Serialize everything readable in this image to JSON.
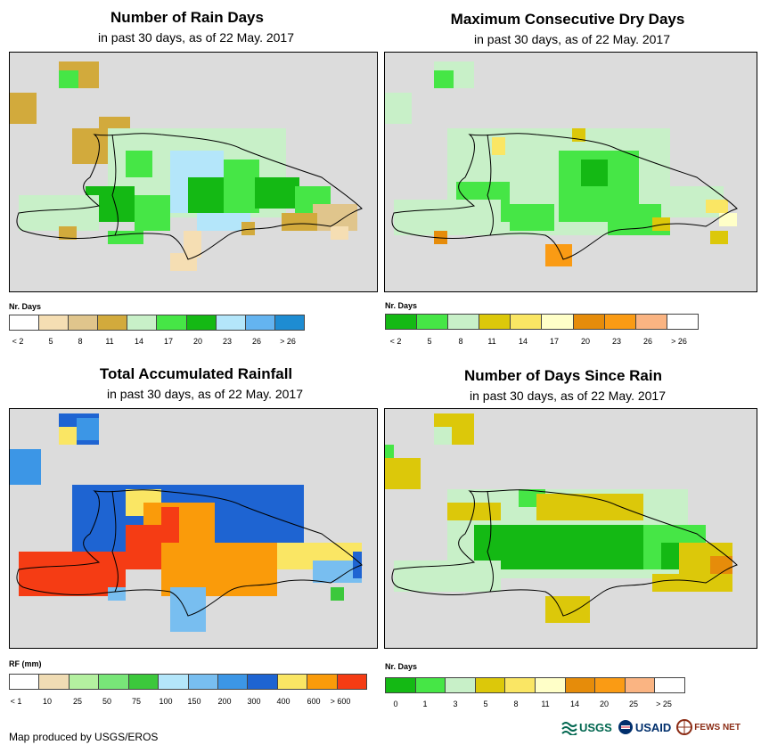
{
  "panels": [
    {
      "title": "Number of Rain Days",
      "subtitle": "in past 30 days, as of 22 May. 2017",
      "legend_title": "Nr. Days",
      "legend_labels": [
        "< 2",
        "5",
        "8",
        "11",
        "14",
        "17",
        "20",
        "23",
        "26",
        "> 26"
      ],
      "legend_colors": [
        "#ffffff",
        "#f5deb3",
        "#e0c58c",
        "#d2aa3c",
        "#c8f0c8",
        "#46e646",
        "#14b914",
        "#b4e6fa",
        "#64b4f0",
        "#1e8cd2"
      ]
    },
    {
      "title": "Maximum Consecutive Dry Days",
      "subtitle": "in past 30 days, as of 22 May. 2017",
      "legend_title": "Nr. Days",
      "legend_labels": [
        "< 2",
        "5",
        "8",
        "11",
        "14",
        "17",
        "20",
        "23",
        "26",
        "> 26"
      ],
      "legend_colors": [
        "#14b914",
        "#46e646",
        "#c8f0c8",
        "#dcc80a",
        "#fae664",
        "#ffffc8",
        "#e68c0a",
        "#fa9b14",
        "#fab482",
        "#ffffff"
      ]
    },
    {
      "title": "Total Accumulated Rainfall",
      "subtitle": "in past 30 days, as of 22 May. 2017",
      "legend_title": "RF (mm)",
      "legend_labels": [
        "< 1",
        "10",
        "25",
        "50",
        "75",
        "100",
        "150",
        "200",
        "300",
        "400",
        "600",
        "> 600"
      ],
      "legend_colors": [
        "#ffffff",
        "#f0dcb4",
        "#b4f0a0",
        "#78e678",
        "#3cc83c",
        "#b4e6fa",
        "#78beF0",
        "#3c96e6",
        "#1e64d2",
        "#fae664",
        "#fa9b0a",
        "#f53c14"
      ]
    },
    {
      "title": "Number of Days Since Rain",
      "subtitle": "in past 30 days, as of 22 May. 2017",
      "legend_title": "Nr. Days",
      "legend_labels": [
        "0",
        "1",
        "3",
        "5",
        "8",
        "11",
        "14",
        "20",
        "25",
        "> 25"
      ],
      "legend_colors": [
        "#14b914",
        "#46e646",
        "#c8f0c8",
        "#dcc80a",
        "#fae664",
        "#ffffc8",
        "#e68c0a",
        "#fa9b14",
        "#fab482",
        "#ffffff"
      ]
    }
  ],
  "footer": "Map produced by USGS/EROS",
  "logos": {
    "usgs": "USGS",
    "usaid": "USAID",
    "fewsnet": "FEWS NET"
  },
  "colors": {
    "map_bg": "#dcdcdc",
    "outline": "#000000"
  }
}
